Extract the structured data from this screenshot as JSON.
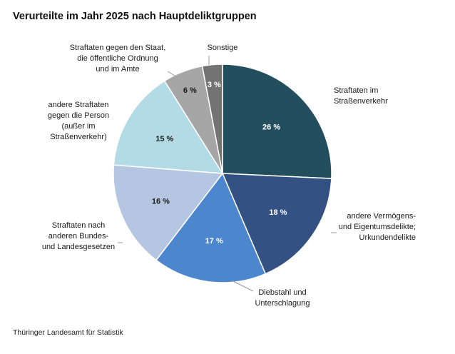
{
  "title": "Verurteilte im Jahr 2025 nach Hauptdeliktgruppen",
  "source": "Thüringer Landesamt für Statistik",
  "chart_data": {
    "type": "pie",
    "title": "Verurteilte im Jahr 2025 nach Hauptdeliktgruppen",
    "unit": "%",
    "start_angle": "12 o'clock",
    "direction": "clockwise",
    "slices": [
      {
        "name": "Straftaten im Straßenverkehr",
        "label_lines": [
          "Straftaten im",
          "Straßenverkehr"
        ],
        "value": 26,
        "value_label": "26 %",
        "color": "#224e5e",
        "value_text_color": "#ffffff"
      },
      {
        "name": "andere Vermögens- und Eigentumsdelikte; Urkundendelikte",
        "label_lines": [
          "andere Vermögens-",
          "und Eigentumsdelikte;",
          "Urkundendelikte"
        ],
        "value": 18,
        "value_label": "18 %",
        "color": "#335183",
        "value_text_color": "#ffffff"
      },
      {
        "name": "Diebstahl und Unterschlagung",
        "label_lines": [
          "Diebstahl und",
          "Unterschlagung"
        ],
        "value": 17,
        "value_label": "17 %",
        "color": "#4c86cd",
        "value_text_color": "#ffffff"
      },
      {
        "name": "Straftaten nach anderen Bundes- und Landesgesetzen",
        "label_lines": [
          "Straftaten nach",
          "anderen Bundes-",
          "und Landesgesetzen"
        ],
        "value": 16,
        "value_label": "16 %",
        "color": "#b5c6e2",
        "value_text_color": "#1a1a1a"
      },
      {
        "name": "andere Straftaten gegen die Person (außer im Straßenverkehr)",
        "label_lines": [
          "andere Straftaten",
          "gegen die Person",
          "(außer im",
          "Straßenverkehr)"
        ],
        "value": 15,
        "value_label": "15 %",
        "color": "#b2dbe6",
        "value_text_color": "#1a1a1a"
      },
      {
        "name": "Straftaten gegen den Staat, die öffentliche Ordnung und im Amte",
        "label_lines": [
          "Straftaten gegen den Staat,",
          "die öffentliche Ordnung",
          "und im Amte"
        ],
        "value": 6,
        "value_label": "6 %",
        "color": "#a6a6a6",
        "value_text_color": "#1a1a1a"
      },
      {
        "name": "Sonstige",
        "label_lines": [
          "Sonstige"
        ],
        "value": 3,
        "value_label": "3 %",
        "color": "#737373",
        "value_text_color": "#ffffff"
      }
    ]
  }
}
